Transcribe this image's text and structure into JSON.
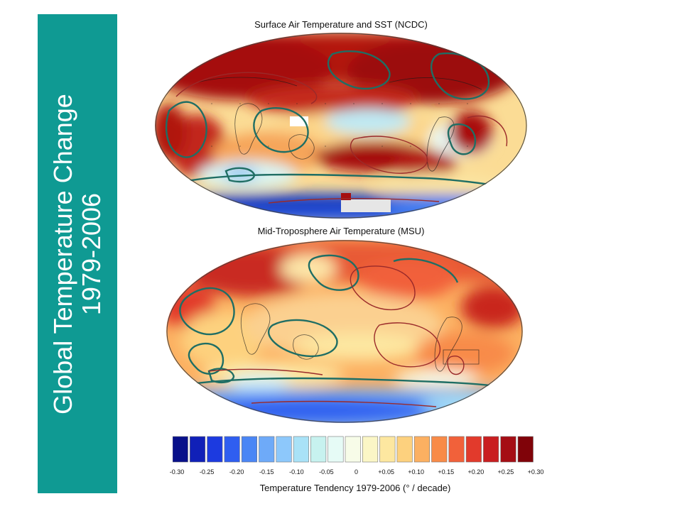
{
  "sidebar": {
    "title_line1": "Global Temperature Change",
    "title_line2": "1979-2006",
    "color": "#0f9a93"
  },
  "maps": [
    {
      "title": "Surface Air Temperature and SST (NCDC)"
    },
    {
      "title": "Mid-Troposphere Air Temperature (MSU)"
    }
  ],
  "colorbar": {
    "label": "Temperature Tendency 1979-2006 (° / decade)",
    "tick_labels": [
      "-0.30",
      "-0.25",
      "-0.20",
      "-0.15",
      "-0.10",
      "-0.05",
      "0",
      "+0.05",
      "+0.10",
      "+0.15",
      "+0.20",
      "+0.25",
      "+0.30"
    ],
    "colors": [
      "#08108a",
      "#1020b8",
      "#1c3ae0",
      "#2f5ef0",
      "#4a86f5",
      "#6eaaf8",
      "#8dc8fb",
      "#a9e2f7",
      "#c7f2ef",
      "#e6fbf6",
      "#f7fce8",
      "#fbf6c6",
      "#fde7a0",
      "#fdd17e",
      "#fcb061",
      "#f88b48",
      "#f1613a",
      "#e23a2c",
      "#c91e20",
      "#a50e15",
      "#800309"
    ]
  },
  "contour_colors": {
    "teal": "#1f6e64",
    "maroon": "#9a2a2a"
  }
}
